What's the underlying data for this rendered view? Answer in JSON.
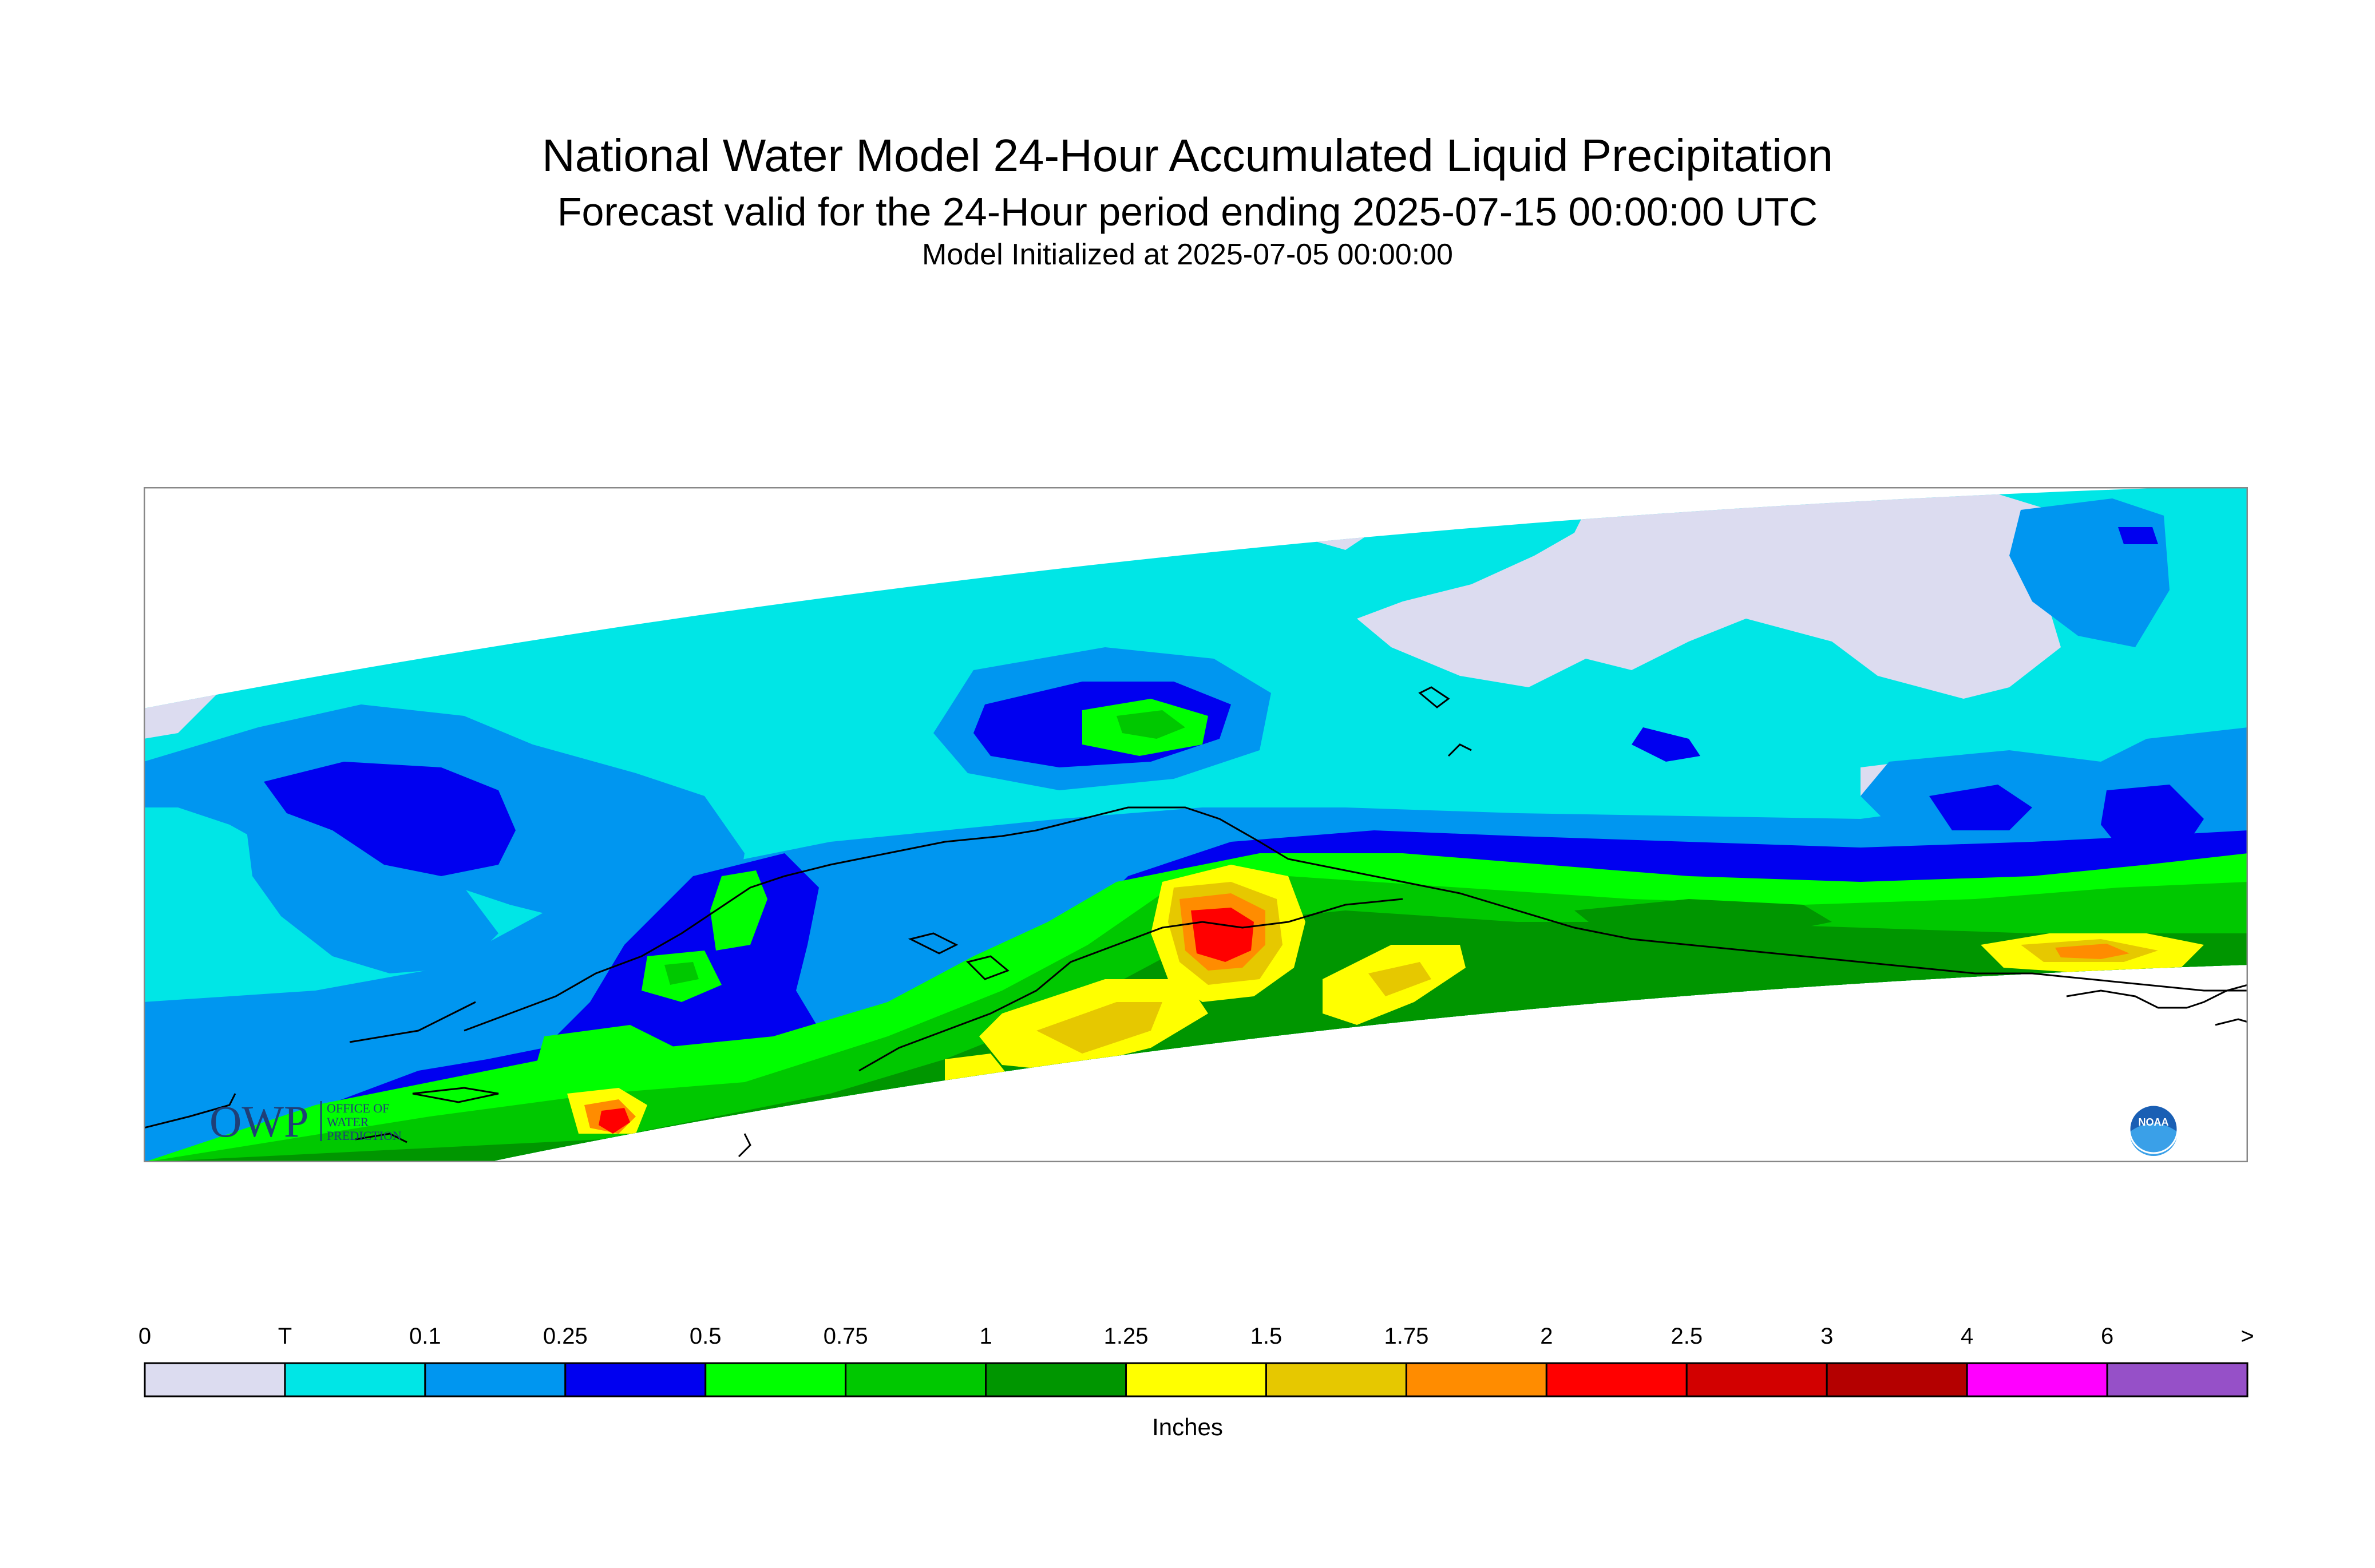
{
  "title": "National Water Model 24-Hour Accumulated Liquid Precipitation",
  "subtitle": "Forecast valid for the 24-Hour period ending 2025-07-15 00:00:00 UTC",
  "init_line": "Model Initialized at 2025-07-05 00:00:00",
  "logos": {
    "owp_mark": "OWP",
    "owp_text": [
      "OFFICE OF",
      "WATER",
      "PREDICTION"
    ],
    "noaa_mark": "NOAA"
  },
  "legend": {
    "units": "Inches",
    "labels": [
      "0",
      "T",
      "0.1",
      "0.25",
      "0.5",
      "0.75",
      "1",
      "1.25",
      "1.5",
      "1.75",
      "2",
      "2.5",
      "3",
      "4",
      "6",
      ">"
    ],
    "colors": [
      "#dcdcf0",
      "#00e6e6",
      "#0096f0",
      "#0000f0",
      "#00ff00",
      "#00c800",
      "#009600",
      "#ffff00",
      "#e6c800",
      "#ff8c00",
      "#ff0000",
      "#d20000",
      "#b40000",
      "#ff00ff",
      "#9650c8"
    ]
  },
  "map_layers": {
    "coastline_color": "#000000",
    "frame_color": "#888888"
  }
}
